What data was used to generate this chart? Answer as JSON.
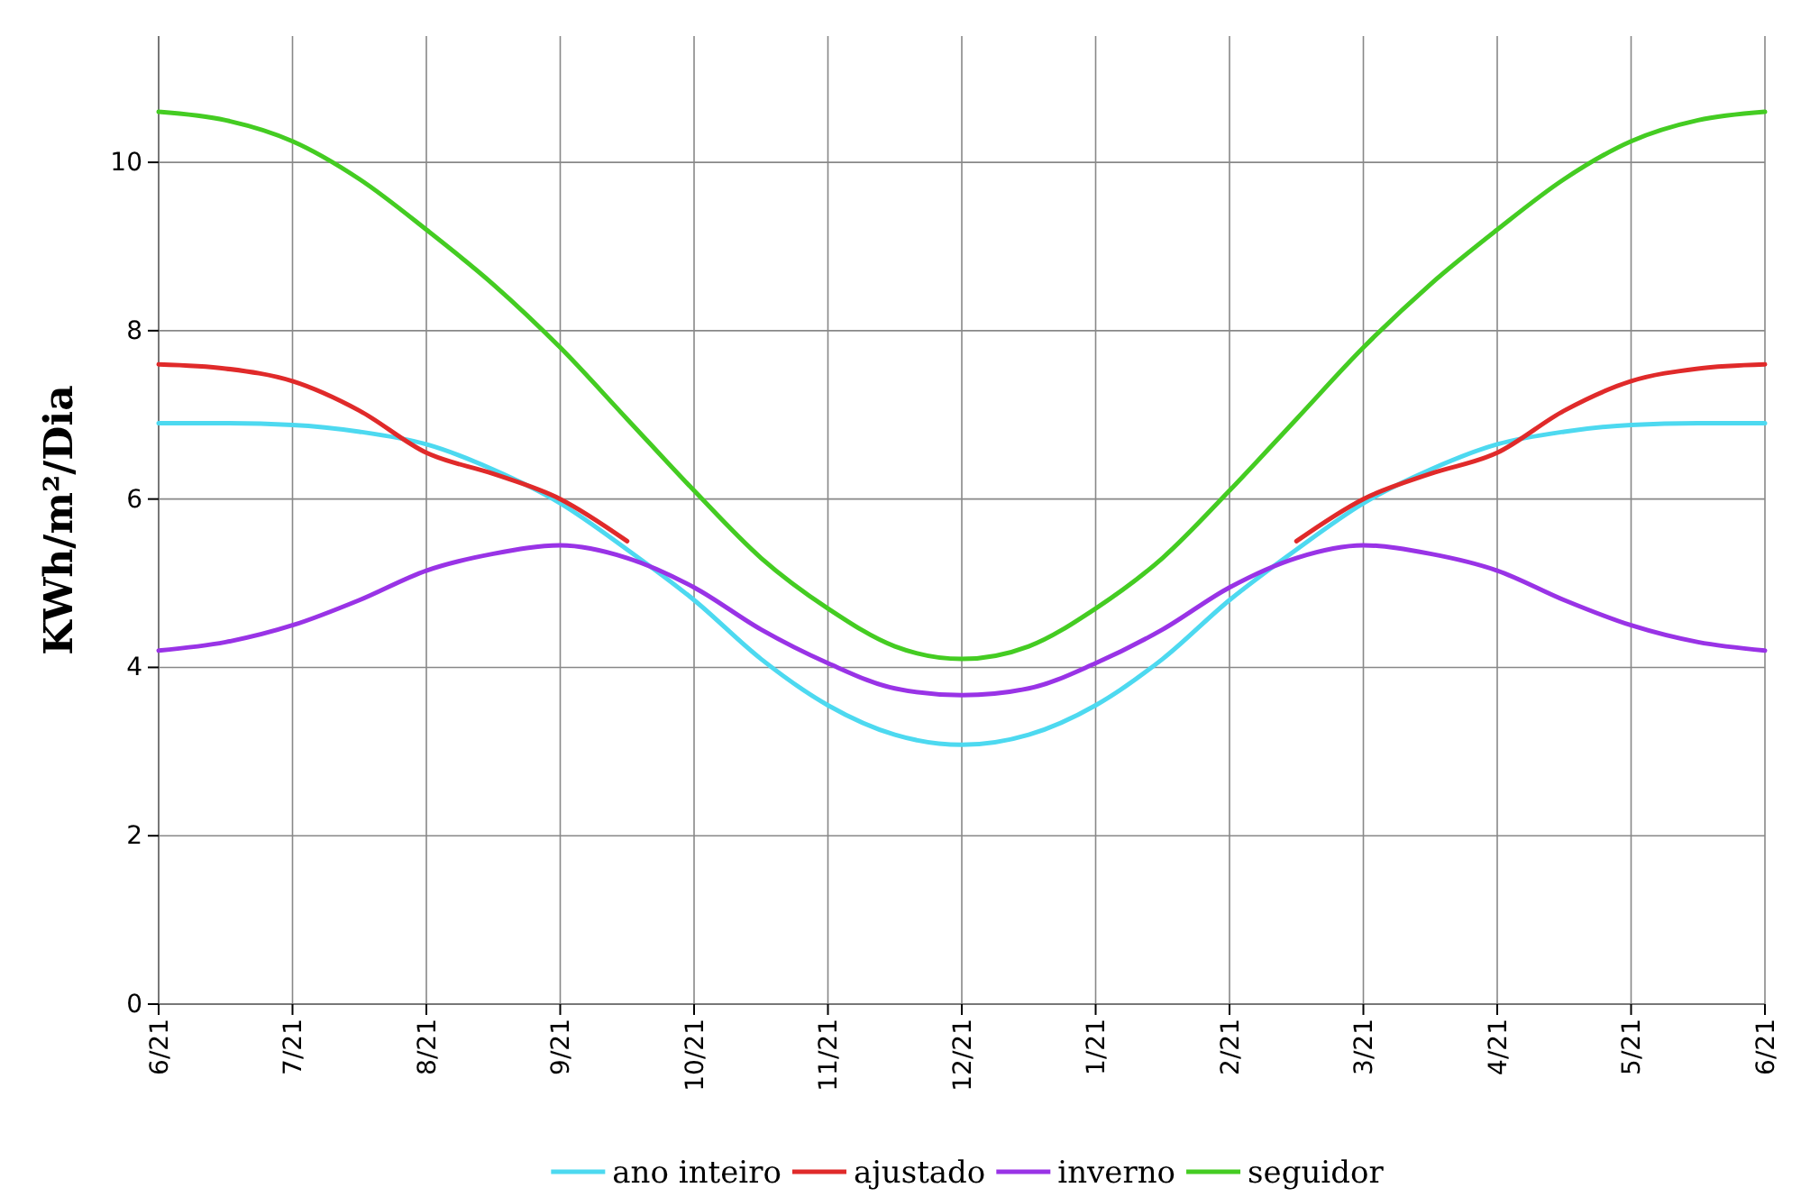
{
  "chart_data": {
    "type": "line",
    "ylabel": "KWh/m²/Dia",
    "ylim": [
      0,
      11.5
    ],
    "categories": [
      "6/21",
      null,
      "7/21",
      null,
      "8/21",
      null,
      "9/21",
      null,
      "10/21",
      null,
      "11/21",
      null,
      "12/21",
      null,
      "1/21",
      null,
      "2/21",
      null,
      "3/21",
      null,
      "4/21",
      null,
      "5/21",
      null,
      "6/21"
    ],
    "yticks": [
      0,
      2,
      4,
      6,
      8,
      10
    ],
    "grid": true,
    "legend": "bottom",
    "marker": "none",
    "line_style": "solid",
    "series": [
      {
        "name": "ano inteiro",
        "color": "#4dd9f0",
        "values": [
          6.9,
          6.9,
          6.88,
          6.8,
          6.65,
          6.35,
          5.95,
          5.4,
          4.8,
          4.1,
          3.55,
          3.2,
          3.08,
          3.2,
          3.55,
          4.1,
          4.8,
          5.4,
          5.95,
          6.35,
          6.65,
          6.8,
          6.88,
          6.9,
          6.9
        ]
      },
      {
        "name": "ajustado",
        "color": "#e02a2a",
        "values": [
          7.6,
          7.55,
          7.4,
          7.05,
          6.55,
          6.3,
          6.0,
          5.5,
          null,
          null,
          null,
          null,
          null,
          null,
          null,
          null,
          null,
          5.5,
          6.0,
          6.3,
          6.55,
          7.05,
          7.4,
          7.55,
          7.6
        ]
      },
      {
        "name": "inverno",
        "color": "#9933e6",
        "values": [
          4.2,
          4.3,
          4.5,
          4.8,
          5.15,
          5.35,
          5.45,
          5.3,
          4.95,
          4.45,
          4.05,
          3.75,
          3.67,
          3.75,
          4.05,
          4.45,
          4.95,
          5.3,
          5.45,
          5.35,
          5.15,
          4.8,
          4.5,
          4.3,
          4.2
        ]
      },
      {
        "name": "seguidor",
        "color": "#44cc22",
        "values": [
          10.6,
          10.5,
          10.25,
          9.8,
          9.2,
          8.55,
          7.8,
          6.95,
          6.1,
          5.3,
          4.7,
          4.25,
          4.1,
          4.25,
          4.7,
          5.3,
          6.1,
          6.95,
          7.8,
          8.55,
          9.2,
          9.8,
          10.25,
          10.5,
          10.6
        ]
      }
    ]
  }
}
